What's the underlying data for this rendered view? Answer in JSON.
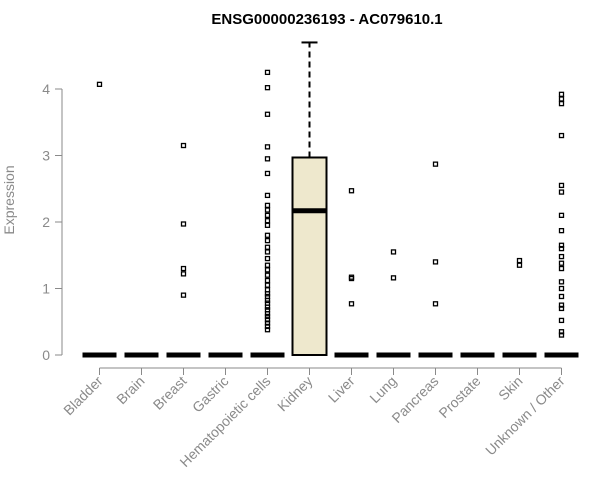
{
  "chart_data": {
    "type": "box",
    "title": "ENSG00000236193 - AC079610.1",
    "xlabel": "",
    "ylabel": "Expression",
    "ylim": [
      0,
      4.7
    ],
    "yticks": [
      0,
      1,
      2,
      3,
      4
    ],
    "box_fill": "#EEE8CD",
    "categories": [
      "Bladder",
      "Brain",
      "Breast",
      "Gastric",
      "Hematopoietic cells",
      "Kidney",
      "Liver",
      "Lung",
      "Pancreas",
      "Prostate",
      "Skin",
      "Unknown / Other"
    ],
    "boxes": [
      {
        "category": "Bladder",
        "q1": 0,
        "median": 0,
        "q3": 0,
        "whisker_low": 0,
        "whisker_high": 0,
        "outliers": [
          4.07
        ]
      },
      {
        "category": "Brain",
        "q1": 0,
        "median": 0,
        "q3": 0,
        "whisker_low": 0,
        "whisker_high": 0,
        "outliers": []
      },
      {
        "category": "Breast",
        "q1": 0,
        "median": 0,
        "q3": 0,
        "whisker_low": 0,
        "whisker_high": 0,
        "outliers": [
          3.15,
          1.97,
          1.3,
          1.22,
          0.9
        ]
      },
      {
        "category": "Gastric",
        "q1": 0,
        "median": 0,
        "q3": 0,
        "whisker_low": 0,
        "whisker_high": 0,
        "outliers": []
      },
      {
        "category": "Hematopoietic cells",
        "q1": 0,
        "median": 0,
        "q3": 0,
        "whisker_low": 0,
        "whisker_high": 0,
        "outliers": [
          4.25,
          4.02,
          3.62,
          3.13,
          2.95,
          2.73,
          2.4,
          2.25,
          2.18,
          2.1,
          2.02,
          1.95,
          1.8,
          1.72,
          1.62,
          1.55,
          1.45,
          1.35,
          1.28,
          1.2,
          1.12,
          1.05,
          0.98,
          0.92,
          0.88,
          0.82,
          0.78,
          0.72,
          0.68,
          0.62,
          0.58,
          0.53,
          0.48,
          0.43,
          0.38
        ]
      },
      {
        "category": "Kidney",
        "q1": 0,
        "median": 2.17,
        "q3": 2.97,
        "whisker_low": 0,
        "whisker_high": 4.7,
        "outliers": []
      },
      {
        "category": "Liver",
        "q1": 0,
        "median": 0,
        "q3": 0,
        "whisker_low": 0,
        "whisker_high": 0,
        "outliers": [
          2.47,
          1.17,
          1.15,
          0.77
        ]
      },
      {
        "category": "Lung",
        "q1": 0,
        "median": 0,
        "q3": 0,
        "whisker_low": 0,
        "whisker_high": 0,
        "outliers": [
          1.55,
          1.16
        ]
      },
      {
        "category": "Pancreas",
        "q1": 0,
        "median": 0,
        "q3": 0,
        "whisker_low": 0,
        "whisker_high": 0,
        "outliers": [
          2.87,
          1.4,
          0.77
        ]
      },
      {
        "category": "Prostate",
        "q1": 0,
        "median": 0,
        "q3": 0,
        "whisker_low": 0,
        "whisker_high": 0,
        "outliers": []
      },
      {
        "category": "Skin",
        "q1": 0,
        "median": 0,
        "q3": 0,
        "whisker_low": 0,
        "whisker_high": 0,
        "outliers": [
          1.42,
          1.35
        ]
      },
      {
        "category": "Unknown / Other",
        "q1": 0,
        "median": 0,
        "q3": 0,
        "whisker_low": 0,
        "whisker_high": 0,
        "outliers": [
          3.92,
          3.85,
          3.78,
          3.3,
          2.55,
          2.45,
          2.1,
          1.87,
          1.65,
          1.6,
          1.48,
          1.38,
          1.3,
          1.1,
          1.0,
          0.88,
          0.75,
          0.7,
          0.52,
          0.35,
          0.3
        ]
      }
    ]
  }
}
